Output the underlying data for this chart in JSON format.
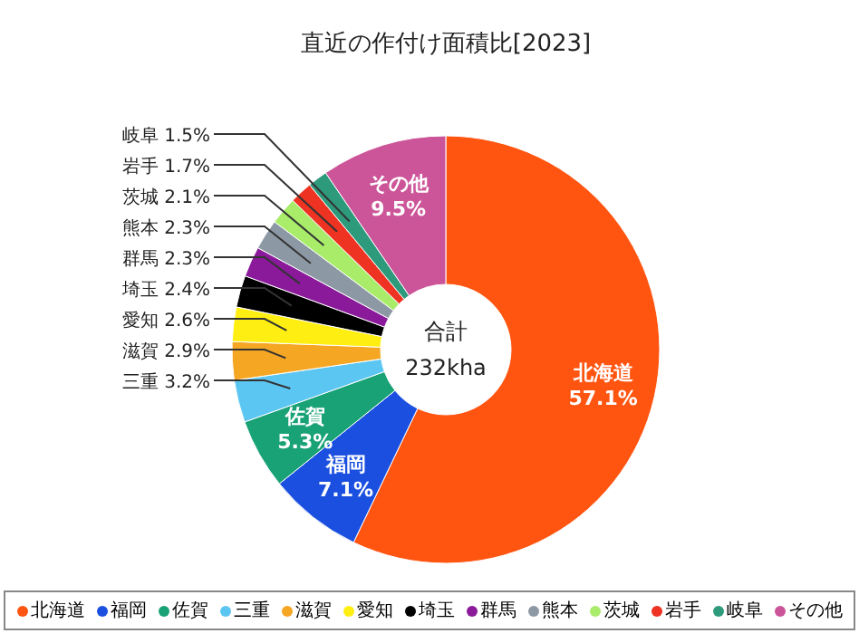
{
  "chart_data": {
    "type": "donut",
    "title": "直近の作付け面積比[2023]",
    "categories": [
      "北海道",
      "福岡",
      "佐賀",
      "三重",
      "滋賀",
      "愛知",
      "埼玉",
      "群馬",
      "熊本",
      "茨城",
      "岩手",
      "岐阜",
      "その他"
    ],
    "values": [
      57.1,
      7.1,
      5.3,
      3.2,
      2.9,
      2.6,
      2.4,
      2.3,
      2.3,
      2.1,
      1.7,
      1.5,
      9.5
    ],
    "value_labels": [
      "57.1%",
      "7.1%",
      "5.3%",
      "3.2%",
      "2.9%",
      "2.6%",
      "2.4%",
      "2.3%",
      "2.3%",
      "2.1%",
      "1.7%",
      "1.5%",
      "9.5%"
    ],
    "colors": [
      "#ff5511",
      "#1a4fe0",
      "#19a276",
      "#5cc6f2",
      "#f5a623",
      "#ffee11",
      "#000000",
      "#8a1a9a",
      "#8c98a4",
      "#a8ec6a",
      "#ee3322",
      "#2e9a7c",
      "#cc5599"
    ],
    "annotations": [
      "合計",
      "232kha"
    ],
    "legend": "bottom"
  }
}
